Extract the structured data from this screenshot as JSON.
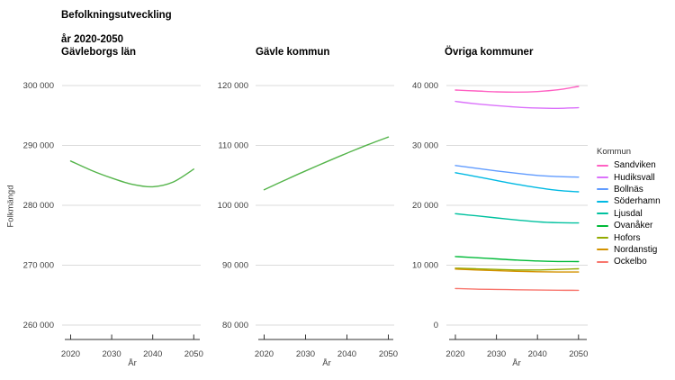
{
  "title": {
    "line1": "Befolkningsutveckling",
    "line2": "år 2020-2050"
  },
  "legend": {
    "title": "Kommun"
  },
  "chart_data": [
    {
      "type": "line",
      "title": "Gävleborgs län",
      "xlabel": "År",
      "ylabel": "Folkmängd",
      "x": [
        2020,
        2025,
        2030,
        2035,
        2040,
        2045,
        2050
      ],
      "xticks": [
        2020,
        2030,
        2040,
        2050
      ],
      "xtick_labels": [
        "2020",
        "2030",
        "2040",
        "2050"
      ],
      "ylim": [
        260000,
        300000
      ],
      "yticks": [
        300000,
        290000,
        280000,
        270000,
        260000
      ],
      "ytick_labels": [
        "300 000",
        "290 000",
        "280 000",
        "270 000",
        "260 000"
      ],
      "grid": true,
      "series": [
        {
          "name": "Gävleborgs län",
          "color": "#54B44A",
          "values": [
            287400,
            285850,
            284550,
            283500,
            283100,
            283900,
            286050
          ]
        }
      ]
    },
    {
      "type": "line",
      "title": "Gävle kommun",
      "xlabel": "År",
      "ylabel": "Folkmängd",
      "x": [
        2020,
        2025,
        2030,
        2035,
        2040,
        2045,
        2050
      ],
      "xticks": [
        2020,
        2030,
        2040,
        2050
      ],
      "xtick_labels": [
        "2020",
        "2030",
        "2040",
        "2050"
      ],
      "ylim": [
        80000,
        120000
      ],
      "yticks": [
        120000,
        110000,
        100000,
        90000,
        80000
      ],
      "ytick_labels": [
        "120 000",
        "110 000",
        "100 000",
        "90 000",
        "80 000"
      ],
      "grid": true,
      "series": [
        {
          "name": "Gävle kommun",
          "color": "#54B44A",
          "values": [
            102600,
            104200,
            105750,
            107250,
            108700,
            110100,
            111400
          ]
        }
      ]
    },
    {
      "type": "line",
      "title": "Övriga kommuner",
      "xlabel": "År",
      "ylabel": "Folkmängd",
      "legend_title": "Kommun",
      "legend_position": "right",
      "x": [
        2020,
        2025,
        2030,
        2035,
        2040,
        2045,
        2050
      ],
      "xticks": [
        2020,
        2030,
        2040,
        2050
      ],
      "xtick_labels": [
        "2020",
        "2030",
        "2040",
        "2050"
      ],
      "ylim": [
        0,
        40000
      ],
      "yticks": [
        40000,
        30000,
        20000,
        10000,
        0
      ],
      "ytick_labels": [
        "40 000",
        "30 000",
        "20 000",
        "10 000",
        "0"
      ],
      "grid": true,
      "series": [
        {
          "name": "Sandviken",
          "color": "#FF61C3",
          "values": [
            39250,
            39100,
            38950,
            38900,
            39000,
            39300,
            39850
          ]
        },
        {
          "name": "Hudiksvall",
          "color": "#DB72FB",
          "values": [
            37350,
            36950,
            36650,
            36400,
            36250,
            36200,
            36300
          ]
        },
        {
          "name": "Bollnäs",
          "color": "#619CFF",
          "values": [
            26650,
            26200,
            25750,
            25350,
            25000,
            24800,
            24700
          ]
        },
        {
          "name": "Söderhamn",
          "color": "#00B9E3",
          "values": [
            25450,
            24800,
            24150,
            23500,
            22950,
            22500,
            22250
          ]
        },
        {
          "name": "Ljusdal",
          "color": "#00C19F",
          "values": [
            18600,
            18250,
            17900,
            17550,
            17250,
            17100,
            17050
          ]
        },
        {
          "name": "Ovanåker",
          "color": "#00BA38",
          "values": [
            11450,
            11250,
            11050,
            10850,
            10700,
            10620,
            10600
          ]
        },
        {
          "name": "Hofors",
          "color": "#93AA00",
          "values": [
            9500,
            9400,
            9300,
            9200,
            9200,
            9300,
            9400
          ]
        },
        {
          "name": "Nordanstig",
          "color": "#D39200",
          "values": [
            9350,
            9200,
            9080,
            8980,
            8900,
            8860,
            8850
          ]
        },
        {
          "name": "Ockelbo",
          "color": "#F8766D",
          "values": [
            6100,
            6000,
            5950,
            5900,
            5850,
            5820,
            5800
          ]
        }
      ]
    }
  ]
}
